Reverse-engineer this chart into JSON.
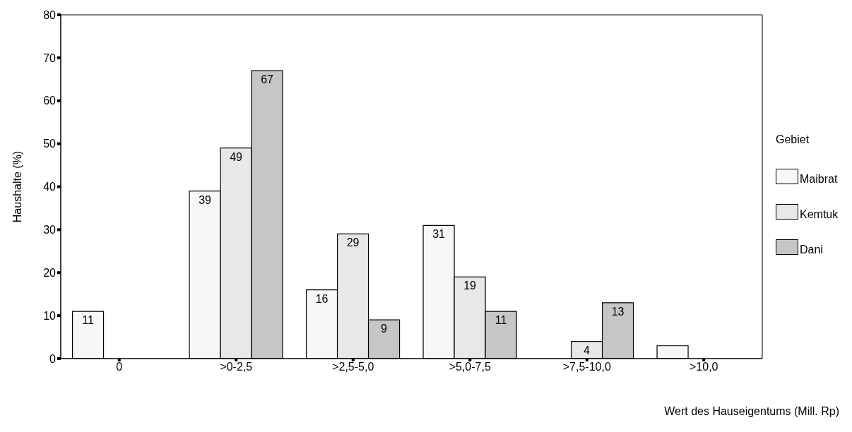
{
  "chart_data": {
    "type": "bar",
    "xlabel": "Wert des Hauseigentums (Mill. Rp)",
    "ylabel": "Haushalte (%)",
    "legend_title": "Gebiet",
    "categories": [
      "0",
      ">0-2,5",
      ">2,5-5,0",
      ">5,0-7,5",
      ">7,5-10,0",
      ">10,0"
    ],
    "series": [
      {
        "name": "Maibrat",
        "color": "#f7f7f7",
        "values": [
          11,
          39,
          16,
          31,
          0,
          3
        ],
        "value_labels": [
          "11",
          "39",
          "16",
          "31",
          null,
          null
        ]
      },
      {
        "name": "Kemtuk",
        "color": "#e8e8e8",
        "values": [
          0,
          49,
          29,
          19,
          4,
          0
        ],
        "value_labels": [
          null,
          "49",
          "29",
          "19",
          "4",
          null
        ]
      },
      {
        "name": "Dani",
        "color": "#c6c6c6",
        "values": [
          0,
          67,
          9,
          11,
          13,
          0
        ],
        "value_labels": [
          null,
          "67",
          "9",
          "11",
          "13",
          null
        ]
      }
    ],
    "ylim": [
      0,
      80
    ],
    "yticks": [
      0,
      10,
      20,
      30,
      40,
      50,
      60,
      70,
      80
    ],
    "grid": false,
    "legend": "right"
  }
}
